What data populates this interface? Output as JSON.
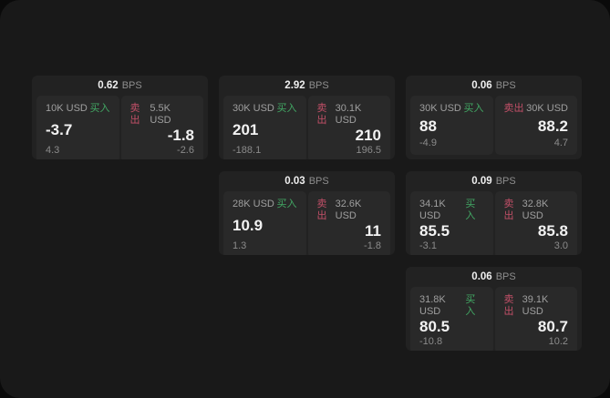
{
  "labels": {
    "buy": "买入",
    "sell": "卖出",
    "bps": "BPS"
  },
  "colors": {
    "buy_green": "#42a864",
    "sell_red": "#c25068",
    "page_bg": "#0a0a0a",
    "container_bg": "#191919",
    "card_bg": "#222222",
    "panel_bg": "#292929"
  },
  "cards": [
    {
      "bps": "0.62",
      "buy": {
        "amount": "10K USD",
        "price": "-3.7",
        "delta": "4.3"
      },
      "sell": {
        "amount": "5.5K USD",
        "price": "-1.8",
        "delta": "-2.6"
      }
    },
    {
      "bps": "2.92",
      "buy": {
        "amount": "30K USD",
        "price": "201",
        "delta": "-188.1"
      },
      "sell": {
        "amount": "30.1K USD",
        "price": "210",
        "delta": "196.5"
      }
    },
    {
      "bps": "0.06",
      "buy": {
        "amount": "30K USD",
        "price": "88",
        "delta": "-4.9"
      },
      "sell": {
        "amount": "30K USD",
        "price": "88.2",
        "delta": "4.7"
      }
    },
    {
      "bps": "0.03",
      "buy": {
        "amount": "28K USD",
        "price": "10.9",
        "delta": "1.3"
      },
      "sell": {
        "amount": "32.6K USD",
        "price": "11",
        "delta": "-1.8"
      }
    },
    {
      "bps": "0.09",
      "buy": {
        "amount": "34.1K USD",
        "price": "85.5",
        "delta": "-3.1"
      },
      "sell": {
        "amount": "32.8K USD",
        "price": "85.8",
        "delta": "3.0"
      }
    },
    {
      "bps": "0.06",
      "buy": {
        "amount": "31.8K USD",
        "price": "80.5",
        "delta": "-10.8"
      },
      "sell": {
        "amount": "39.1K USD",
        "price": "80.7",
        "delta": "10.2"
      }
    }
  ]
}
